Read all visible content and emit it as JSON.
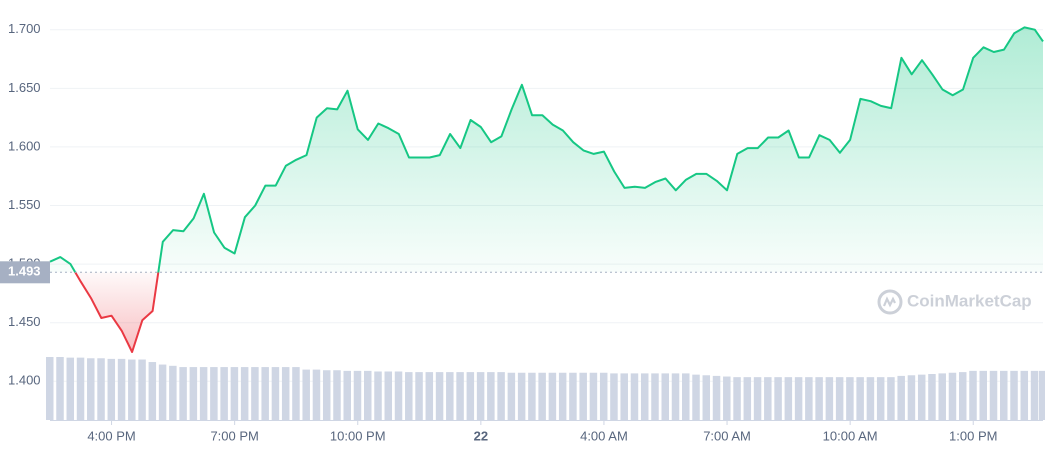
{
  "chart_data": {
    "type": "line",
    "watermark": "CoinMarketCap",
    "baseline": 1.493,
    "color_up": "#16c784",
    "color_down": "#ea3943",
    "volume_color": "#cfd6e4",
    "grid": true,
    "xlim": [
      14.5,
      38.7
    ],
    "ylim": [
      1.39,
      1.71
    ],
    "yticks": [
      {
        "value": 1.4,
        "label": "1.400"
      },
      {
        "value": 1.45,
        "label": "1.450"
      },
      {
        "value": 1.5,
        "label": "1.500"
      },
      {
        "value": 1.55,
        "label": "1.550"
      },
      {
        "value": 1.6,
        "label": "1.600"
      },
      {
        "value": 1.65,
        "label": "1.650"
      },
      {
        "value": 1.7,
        "label": "1.700"
      }
    ],
    "xticks": [
      {
        "value": 16,
        "label": "4:00 PM"
      },
      {
        "value": 19,
        "label": "7:00 PM"
      },
      {
        "value": 22,
        "label": "10:00 PM"
      },
      {
        "value": 25,
        "label": "22"
      },
      {
        "value": 28,
        "label": "4:00 AM"
      },
      {
        "value": 31,
        "label": "7:00 AM"
      },
      {
        "value": 34,
        "label": "10:00 AM"
      },
      {
        "value": 37,
        "label": "1:00 PM"
      }
    ],
    "x": [
      14.5,
      14.75,
      15,
      15.25,
      15.5,
      15.75,
      16,
      16.25,
      16.5,
      16.75,
      17,
      17.25,
      17.5,
      17.75,
      18,
      18.25,
      18.5,
      18.75,
      19,
      19.25,
      19.5,
      19.75,
      20,
      20.25,
      20.5,
      20.75,
      21,
      21.25,
      21.5,
      21.75,
      22,
      22.25,
      22.5,
      22.75,
      23,
      23.25,
      23.5,
      23.75,
      24,
      24.25,
      24.5,
      24.75,
      25,
      25.25,
      25.5,
      25.75,
      26,
      26.25,
      26.5,
      26.75,
      27,
      27.25,
      27.5,
      27.75,
      28,
      28.25,
      28.5,
      28.75,
      29,
      29.25,
      29.5,
      29.75,
      30,
      30.25,
      30.5,
      30.75,
      31,
      31.25,
      31.5,
      31.75,
      32,
      32.25,
      32.5,
      32.75,
      33,
      33.25,
      33.5,
      33.75,
      34,
      34.25,
      34.5,
      34.75,
      35,
      35.25,
      35.5,
      35.75,
      36,
      36.25,
      36.5,
      36.75,
      37,
      37.25,
      37.5,
      37.75,
      38,
      38.25,
      38.5,
      38.7
    ],
    "values": [
      1.502,
      1.506,
      1.5,
      1.485,
      1.471,
      1.454,
      1.456,
      1.443,
      1.425,
      1.452,
      1.46,
      1.519,
      1.529,
      1.528,
      1.539,
      1.56,
      1.527,
      1.514,
      1.509,
      1.54,
      1.55,
      1.567,
      1.567,
      1.584,
      1.589,
      1.593,
      1.625,
      1.633,
      1.632,
      1.648,
      1.615,
      1.606,
      1.62,
      1.616,
      1.611,
      1.591,
      1.591,
      1.591,
      1.593,
      1.611,
      1.599,
      1.623,
      1.617,
      1.604,
      1.609,
      1.632,
      1.653,
      1.627,
      1.627,
      1.619,
      1.614,
      1.604,
      1.597,
      1.594,
      1.596,
      1.579,
      1.565,
      1.566,
      1.565,
      1.57,
      1.573,
      1.563,
      1.572,
      1.577,
      1.577,
      1.571,
      1.563,
      1.594,
      1.599,
      1.599,
      1.608,
      1.608,
      1.614,
      1.591,
      1.591,
      1.61,
      1.606,
      1.595,
      1.606,
      1.641,
      1.639,
      1.635,
      1.633,
      1.676,
      1.662,
      1.674,
      1.662,
      1.649,
      1.644,
      1.649,
      1.676,
      1.685,
      1.681,
      1.683,
      1.697,
      1.702,
      1.7,
      1.69
    ],
    "volume": [
      100,
      100,
      99,
      99,
      98,
      98,
      97,
      97,
      96,
      96,
      92,
      88,
      86,
      84,
      84,
      84,
      84,
      84,
      84,
      84,
      84,
      84,
      84,
      84,
      84,
      80,
      80,
      79,
      79,
      78,
      78,
      78,
      77,
      77,
      77,
      76,
      76,
      76,
      76,
      76,
      76,
      76,
      76,
      76,
      76,
      75,
      75,
      75,
      75,
      75,
      75,
      75,
      75,
      75,
      75,
      74,
      74,
      74,
      74,
      74,
      74,
      74,
      74,
      72,
      71,
      70,
      69,
      68,
      68,
      68,
      68,
      68,
      68,
      68,
      68,
      68,
      68,
      68,
      68,
      68,
      68,
      68,
      68,
      70,
      71,
      72,
      73,
      74,
      75,
      76,
      78,
      78,
      78,
      78,
      78,
      78,
      78,
      78
    ]
  }
}
